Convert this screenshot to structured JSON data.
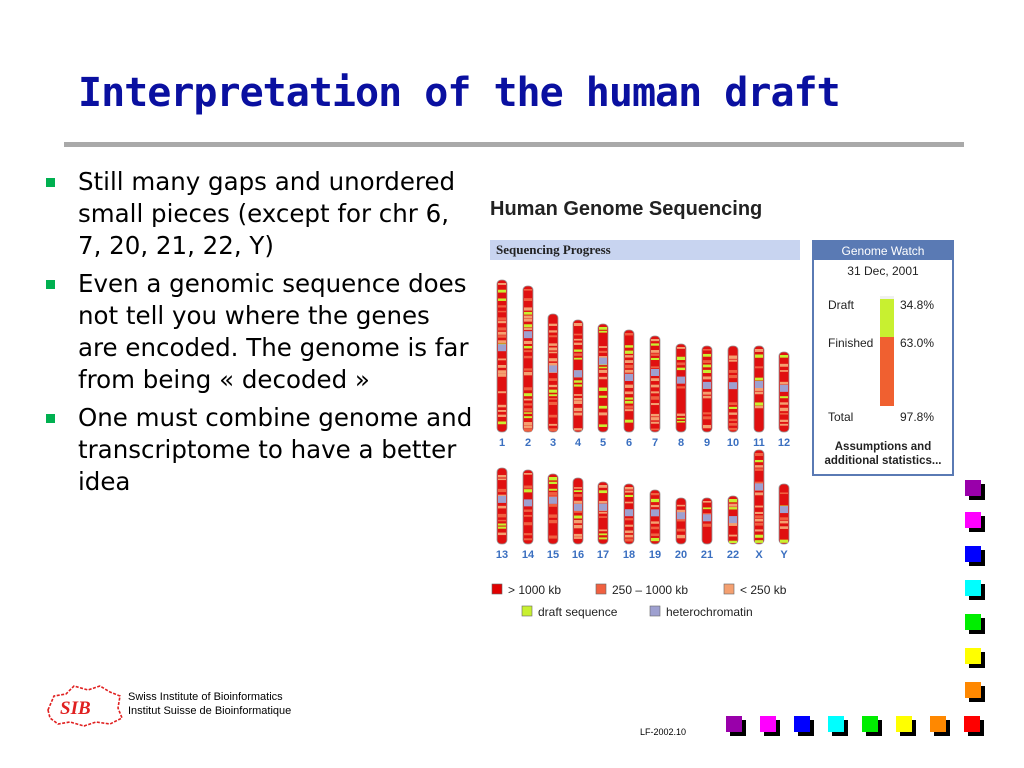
{
  "slide": {
    "title": "Interpretation of the human draft",
    "bullets": [
      "Still many gaps and unordered small pieces (except for chr 6, 7, 20, 21, 22, Y)",
      "Even a genomic sequence does not tell you where the genes are encoded. The genome is far from being « decoded »",
      "One must combine genome and transcriptome to have a better idea"
    ],
    "bullet_color": "#00b050",
    "title_color": "#0a10a0"
  },
  "figure": {
    "title": "Human Genome Sequencing",
    "progress_label": "Sequencing Progress",
    "row1_labels": [
      "1",
      "2",
      "3",
      "4",
      "5",
      "6",
      "7",
      "8",
      "9",
      "10",
      "11",
      "12"
    ],
    "row2_labels": [
      "13",
      "14",
      "15",
      "16",
      "17",
      "18",
      "19",
      "20",
      "21",
      "22",
      "X",
      "Y"
    ],
    "legend": [
      {
        "label": "> 1000 kb",
        "color": "#e00000"
      },
      {
        "label": "250 – 1000 kb",
        "color": "#f06040"
      },
      {
        "label": "< 250 kb",
        "color": "#f4a070"
      },
      {
        "label": "draft sequence",
        "color": "#c8f030"
      },
      {
        "label": "heterochromatin",
        "color": "#9ea0d0"
      }
    ],
    "genome_watch": {
      "header": "Genome Watch",
      "date": "31 Dec, 2001",
      "draft_label": "Draft",
      "draft_value": "34.8%",
      "draft_fraction": 0.348,
      "finished_label": "Finished",
      "finished_value": "63.0%",
      "finished_fraction": 0.63,
      "total_label": "Total",
      "total_value": "97.8%",
      "footer_line1": "Assumptions and",
      "footer_line2": "additional statistics..."
    }
  },
  "footer": {
    "logo_text": "SIB",
    "institute_en": "Swiss Institute of Bioinformatics",
    "institute_fr": "Institut Suisse de Bioinformatique",
    "slide_id": "LF-2002.10"
  },
  "decor_colors": [
    "#9900aa",
    "#ff00ff",
    "#0000ff",
    "#00ffff",
    "#00ee00",
    "#ffff00",
    "#ff8800",
    "#ff0000"
  ]
}
